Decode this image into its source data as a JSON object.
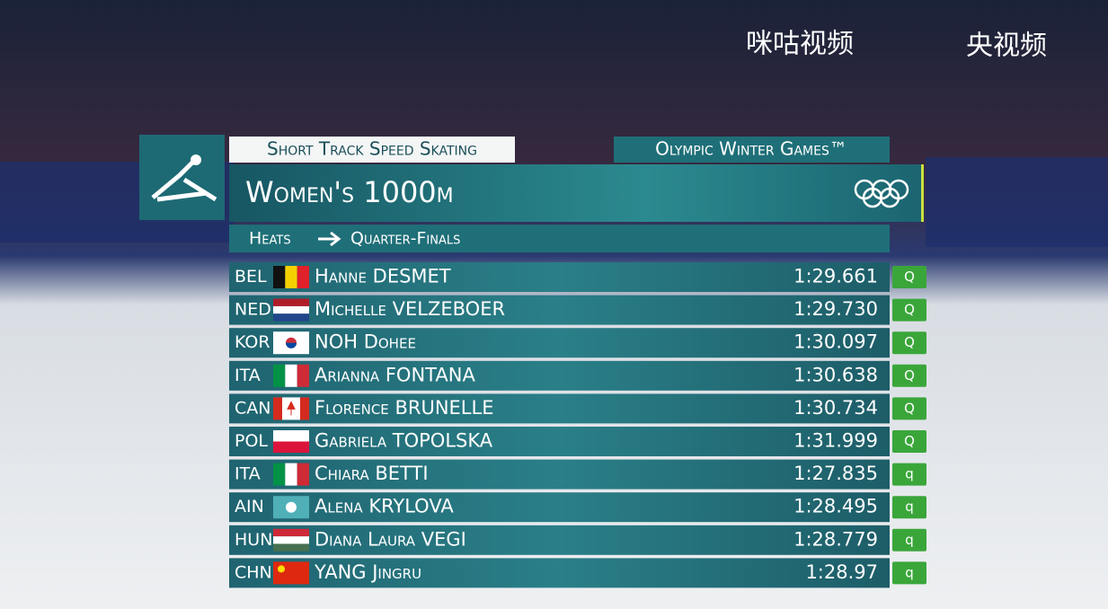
{
  "watermark": {
    "left": "咪咕视频",
    "right": "央视频"
  },
  "header": {
    "sport": "Short Track Speed Skating",
    "games": "Olympic Winter Games™",
    "event": "Women's 1000m",
    "phase_from": "Heats",
    "phase_to": "Quarter-Finals"
  },
  "results": [
    {
      "noc": "BEL",
      "name": "Hanne DESMET",
      "time": "1:29.661",
      "qual": "Q"
    },
    {
      "noc": "NED",
      "name": "Michelle VELZEBOER",
      "time": "1:29.730",
      "qual": "Q"
    },
    {
      "noc": "KOR",
      "name": "NOH Dohee",
      "time": "1:30.097",
      "qual": "Q"
    },
    {
      "noc": "ITA",
      "name": "Arianna FONTANA",
      "time": "1:30.638",
      "qual": "Q"
    },
    {
      "noc": "CAN",
      "name": "Florence BRUNELLE",
      "time": "1:30.734",
      "qual": "Q"
    },
    {
      "noc": "POL",
      "name": "Gabriela TOPOLSKA",
      "time": "1:31.999",
      "qual": "Q"
    },
    {
      "noc": "ITA",
      "name": "Chiara BETTI",
      "time": "1:27.835",
      "qual": "q"
    },
    {
      "noc": "AIN",
      "name": "Alena KRYLOVA",
      "time": "1:28.495",
      "qual": "q"
    },
    {
      "noc": "HUN",
      "name": "Diana Laura VEGI",
      "time": "1:28.779",
      "qual": "q"
    },
    {
      "noc": "CHN",
      "name": "YANG Jingru",
      "time": "1:28.97",
      "qual": "q"
    }
  ]
}
